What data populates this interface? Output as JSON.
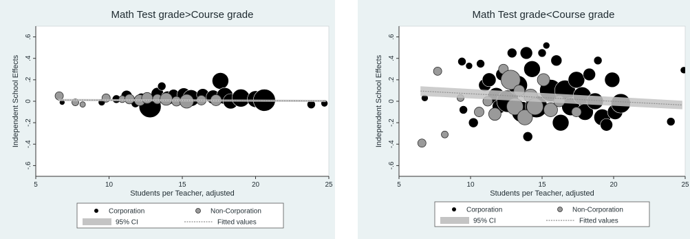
{
  "colors": {
    "panel_bg": "#eaf2f3",
    "plot_bg": "#ffffff",
    "corporation": "#000000",
    "non_corporation": "#9a9a9a",
    "ci_band": "#c4c4c4",
    "fitted_line": "#8f8f8f"
  },
  "chart_data": [
    {
      "type": "scatter",
      "title": "Math Test grade>Course grade",
      "xlabel": "Students per Teacher, adjusted",
      "ylabel": "Independent School Effects",
      "xlim": [
        5,
        25
      ],
      "ylim": [
        -0.7,
        0.7
      ],
      "x_ticks": [
        "5",
        "10",
        "15",
        "20",
        "25"
      ],
      "y_ticks": [
        ".6",
        ".4",
        ".2",
        "0",
        "-.2",
        "-.4",
        "-.6"
      ],
      "legend": {
        "position": "bottom",
        "items": [
          "Corporation",
          "Non-Corporation",
          "95% CI",
          "Fitted values"
        ]
      },
      "fitted_line": {
        "x": [
          6.5,
          24.8
        ],
        "y": [
          0.012,
          0.003
        ]
      },
      "ci_band": {
        "x": [
          6.5,
          24.8
        ],
        "upper": [
          0.022,
          0.013
        ],
        "lower": [
          0.002,
          -0.007
        ]
      },
      "series": [
        {
          "name": "Corporation",
          "points": [
            {
              "x": 6.8,
              "y": -0.01,
              "r": 4
            },
            {
              "x": 9.5,
              "y": -0.01,
              "r": 5
            },
            {
              "x": 10.5,
              "y": 0.02,
              "r": 6
            },
            {
              "x": 11.2,
              "y": 0.05,
              "r": 8
            },
            {
              "x": 11.8,
              "y": -0.02,
              "r": 6
            },
            {
              "x": 12.2,
              "y": 0.03,
              "r": 7
            },
            {
              "x": 12.8,
              "y": -0.05,
              "r": 16
            },
            {
              "x": 13.3,
              "y": 0.07,
              "r": 9
            },
            {
              "x": 13.6,
              "y": 0.14,
              "r": 6
            },
            {
              "x": 14.0,
              "y": 0.03,
              "r": 10
            },
            {
              "x": 14.4,
              "y": 0.06,
              "r": 8
            },
            {
              "x": 15.1,
              "y": 0.06,
              "r": 10
            },
            {
              "x": 15.6,
              "y": 0.03,
              "r": 12
            },
            {
              "x": 16.4,
              "y": 0.06,
              "r": 9
            },
            {
              "x": 17.1,
              "y": 0.04,
              "r": 10
            },
            {
              "x": 17.6,
              "y": 0.19,
              "r": 12
            },
            {
              "x": 17.9,
              "y": 0.05,
              "r": 12
            },
            {
              "x": 18.3,
              "y": 0.0,
              "r": 11
            },
            {
              "x": 19.0,
              "y": 0.03,
              "r": 13
            },
            {
              "x": 20.0,
              "y": 0.02,
              "r": 12
            },
            {
              "x": 20.6,
              "y": 0.01,
              "r": 16
            },
            {
              "x": 23.8,
              "y": -0.03,
              "r": 6
            },
            {
              "x": 24.7,
              "y": -0.02,
              "r": 5
            }
          ]
        },
        {
          "name": "Non-Corporation",
          "points": [
            {
              "x": 6.6,
              "y": 0.05,
              "r": 6
            },
            {
              "x": 7.7,
              "y": -0.01,
              "r": 5
            },
            {
              "x": 8.2,
              "y": -0.03,
              "r": 4
            },
            {
              "x": 9.8,
              "y": 0.03,
              "r": 6
            },
            {
              "x": 10.9,
              "y": 0.02,
              "r": 5
            },
            {
              "x": 11.4,
              "y": 0.02,
              "r": 7
            },
            {
              "x": 12.1,
              "y": 0.01,
              "r": 8
            },
            {
              "x": 12.6,
              "y": 0.03,
              "r": 8
            },
            {
              "x": 13.3,
              "y": 0.02,
              "r": 7
            },
            {
              "x": 13.9,
              "y": 0.02,
              "r": 9
            },
            {
              "x": 14.6,
              "y": 0.0,
              "r": 7
            },
            {
              "x": 15.3,
              "y": 0.0,
              "r": 10
            },
            {
              "x": 16.3,
              "y": 0.01,
              "r": 7
            },
            {
              "x": 17.3,
              "y": 0.01,
              "r": 8
            }
          ]
        }
      ]
    },
    {
      "type": "scatter",
      "title": "Math Test grade<Course grade",
      "xlabel": "Students per Teacher, adjusted",
      "ylabel": "Independent School Effects",
      "xlim": [
        5,
        25
      ],
      "ylim": [
        -0.7,
        0.7
      ],
      "x_ticks": [
        "5",
        "10",
        "15",
        "20",
        "25"
      ],
      "y_ticks": [
        ".6",
        ".4",
        ".2",
        "0",
        "-.2",
        "-.4",
        "-.6"
      ],
      "legend": {
        "position": "bottom",
        "items": [
          "Corporation",
          "Non-Corporation",
          "95% CI",
          "Fitted values"
        ]
      },
      "fitted_line": {
        "x": [
          6.5,
          24.8
        ],
        "y": [
          0.095,
          -0.035
        ]
      },
      "ci_band": {
        "x": [
          6.5,
          24.8
        ],
        "upper": [
          0.14,
          0.005
        ],
        "lower": [
          0.05,
          -0.075
        ]
      },
      "series": [
        {
          "name": "Corporation",
          "points": [
            {
              "x": 6.8,
              "y": 0.03,
              "r": 5
            },
            {
              "x": 9.4,
              "y": 0.37,
              "r": 6
            },
            {
              "x": 9.5,
              "y": -0.08,
              "r": 6
            },
            {
              "x": 9.9,
              "y": 0.33,
              "r": 5
            },
            {
              "x": 10.2,
              "y": -0.2,
              "r": 7
            },
            {
              "x": 10.7,
              "y": 0.35,
              "r": 6
            },
            {
              "x": 11.0,
              "y": 0.15,
              "r": 9
            },
            {
              "x": 11.3,
              "y": 0.2,
              "r": 10
            },
            {
              "x": 11.8,
              "y": 0.05,
              "r": 12
            },
            {
              "x": 12.0,
              "y": -0.05,
              "r": 10
            },
            {
              "x": 12.2,
              "y": 0.25,
              "r": 9
            },
            {
              "x": 12.6,
              "y": 0.0,
              "r": 16
            },
            {
              "x": 12.9,
              "y": 0.45,
              "r": 7
            },
            {
              "x": 13.3,
              "y": 0.15,
              "r": 14
            },
            {
              "x": 13.6,
              "y": -0.1,
              "r": 15
            },
            {
              "x": 13.9,
              "y": 0.45,
              "r": 9
            },
            {
              "x": 14.0,
              "y": -0.33,
              "r": 7
            },
            {
              "x": 14.3,
              "y": 0.3,
              "r": 12
            },
            {
              "x": 14.6,
              "y": -0.05,
              "r": 16
            },
            {
              "x": 15.0,
              "y": 0.45,
              "r": 6
            },
            {
              "x": 15.3,
              "y": 0.52,
              "r": 5
            },
            {
              "x": 15.6,
              "y": 0.1,
              "r": 16
            },
            {
              "x": 16.0,
              "y": 0.38,
              "r": 8
            },
            {
              "x": 16.3,
              "y": -0.2,
              "r": 12
            },
            {
              "x": 16.6,
              "y": 0.1,
              "r": 15
            },
            {
              "x": 17.0,
              "y": -0.05,
              "r": 13
            },
            {
              "x": 17.4,
              "y": 0.2,
              "r": 12
            },
            {
              "x": 17.8,
              "y": 0.05,
              "r": 13
            },
            {
              "x": 18.0,
              "y": -0.1,
              "r": 12
            },
            {
              "x": 18.3,
              "y": 0.25,
              "r": 9
            },
            {
              "x": 18.7,
              "y": 0.0,
              "r": 12
            },
            {
              "x": 18.9,
              "y": 0.38,
              "r": 6
            },
            {
              "x": 19.2,
              "y": -0.15,
              "r": 12
            },
            {
              "x": 19.5,
              "y": -0.22,
              "r": 9
            },
            {
              "x": 19.9,
              "y": 0.2,
              "r": 11
            },
            {
              "x": 20.1,
              "y": -0.1,
              "r": 11
            },
            {
              "x": 20.5,
              "y": -0.02,
              "r": 14
            },
            {
              "x": 24.0,
              "y": -0.19,
              "r": 6
            },
            {
              "x": 24.9,
              "y": 0.29,
              "r": 5
            }
          ]
        },
        {
          "name": "Non-Corporation",
          "points": [
            {
              "x": 6.6,
              "y": -0.39,
              "r": 6
            },
            {
              "x": 7.7,
              "y": 0.28,
              "r": 6
            },
            {
              "x": 8.2,
              "y": -0.31,
              "r": 5
            },
            {
              "x": 9.3,
              "y": 0.03,
              "r": 5
            },
            {
              "x": 10.6,
              "y": -0.1,
              "r": 7
            },
            {
              "x": 11.2,
              "y": 0.0,
              "r": 7
            },
            {
              "x": 11.7,
              "y": -0.12,
              "r": 9
            },
            {
              "x": 12.3,
              "y": 0.3,
              "r": 7
            },
            {
              "x": 12.8,
              "y": 0.2,
              "r": 14
            },
            {
              "x": 13.1,
              "y": -0.05,
              "r": 12
            },
            {
              "x": 13.4,
              "y": 0.1,
              "r": 8
            },
            {
              "x": 13.8,
              "y": -0.15,
              "r": 11
            },
            {
              "x": 14.2,
              "y": 0.05,
              "r": 10
            },
            {
              "x": 14.5,
              "y": -0.05,
              "r": 12
            },
            {
              "x": 15.1,
              "y": 0.2,
              "r": 9
            },
            {
              "x": 15.6,
              "y": -0.08,
              "r": 10
            },
            {
              "x": 16.2,
              "y": 0.0,
              "r": 8
            },
            {
              "x": 17.4,
              "y": -0.1,
              "r": 7
            }
          ]
        }
      ]
    }
  ]
}
